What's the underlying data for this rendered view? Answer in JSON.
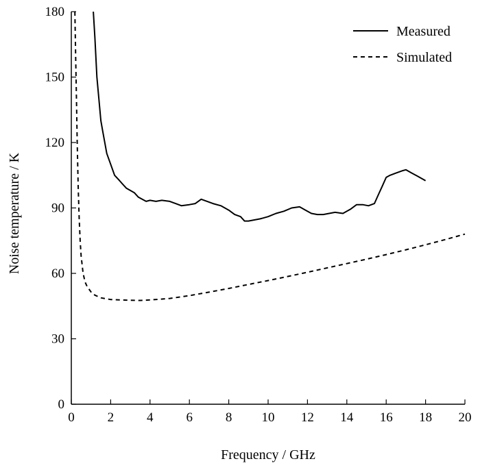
{
  "chart_data": {
    "type": "line",
    "title": "",
    "xlabel": "Frequency / GHz",
    "ylabel": "Noise temperature / K",
    "xlim": [
      0,
      20
    ],
    "ylim": [
      0,
      180
    ],
    "xticks": [
      0,
      2,
      4,
      6,
      8,
      10,
      12,
      14,
      16,
      18,
      20
    ],
    "yticks": [
      0,
      30,
      60,
      90,
      120,
      150,
      180
    ],
    "grid": false,
    "legend_position": "top-right",
    "series": [
      {
        "name": "Measured",
        "style": "solid",
        "color": "#000000",
        "x": [
          1.12,
          1.2,
          1.3,
          1.4,
          1.5,
          1.6,
          1.7,
          1.8,
          2.0,
          2.2,
          2.4,
          2.6,
          2.8,
          3.0,
          3.2,
          3.4,
          3.6,
          3.8,
          4.0,
          4.3,
          4.6,
          5.0,
          5.3,
          5.6,
          6.0,
          6.3,
          6.6,
          6.9,
          7.2,
          7.6,
          8.0,
          8.3,
          8.6,
          8.8,
          9.0,
          9.3,
          9.6,
          10.0,
          10.4,
          10.8,
          11.2,
          11.6,
          11.9,
          12.2,
          12.5,
          12.8,
          13.1,
          13.4,
          13.8,
          14.2,
          14.5,
          14.8,
          15.1,
          15.4,
          15.6,
          15.8,
          16.0,
          16.2,
          16.5,
          16.8,
          17.0,
          17.3,
          17.6,
          18.0
        ],
        "values": [
          180,
          168,
          150,
          140,
          130,
          125,
          120,
          115,
          110,
          105,
          103,
          101,
          99,
          98,
          97,
          95,
          94,
          93,
          93.5,
          93,
          93.5,
          93,
          92,
          91,
          91.5,
          92,
          94,
          93,
          92,
          91,
          89,
          87,
          86,
          84,
          84,
          84.5,
          85,
          86,
          87.5,
          88.5,
          90,
          90.5,
          89,
          87.5,
          87,
          87,
          87.5,
          88,
          87.5,
          89.5,
          91.5,
          91.5,
          91,
          92,
          96,
          100,
          104,
          105,
          106,
          107,
          107.5,
          106,
          104.5,
          102.5
        ]
      },
      {
        "name": "Simulated",
        "style": "dashed",
        "color": "#000000",
        "x": [
          0.18,
          0.22,
          0.26,
          0.3,
          0.35,
          0.4,
          0.45,
          0.5,
          0.6,
          0.7,
          0.8,
          1.0,
          1.2,
          1.5,
          2.0,
          2.5,
          3.0,
          3.5,
          4.0,
          5.0,
          6.0,
          7.0,
          8.0,
          9.0,
          10.0,
          11.0,
          12.0,
          13.0,
          14.0,
          15.0,
          16.0,
          17.0,
          18.0,
          19.0,
          20.0
        ],
        "values": [
          180,
          160,
          140,
          120,
          100,
          85,
          75,
          68,
          60,
          56,
          54,
          51.5,
          50,
          48.8,
          48,
          47.8,
          47.7,
          47.6,
          47.8,
          48.5,
          49.8,
          51.4,
          53.1,
          54.9,
          56.7,
          58.6,
          60.5,
          62.5,
          64.5,
          66.5,
          68.6,
          70.8,
          73.1,
          75.5,
          78
        ]
      }
    ]
  }
}
